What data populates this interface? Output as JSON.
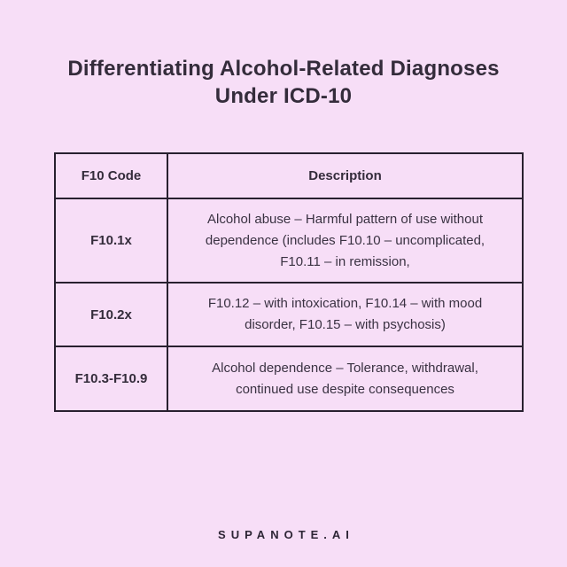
{
  "page": {
    "background_color": "#f7def7",
    "text_color": "#342c3b",
    "border_color": "#28202f"
  },
  "title": {
    "line1": "Differentiating Alcohol-Related Diagnoses",
    "line2": "Under ICD-10"
  },
  "table": {
    "headers": [
      "F10 Code",
      "Description"
    ],
    "rows": [
      {
        "code": "F10.1x",
        "description": "Alcohol abuse – Harmful pattern of use without dependence (includes F10.10 – uncomplicated, F10.11 – in remission,"
      },
      {
        "code": "F10.2x",
        "description": "F10.12 – with intoxication, F10.14 – with mood disorder, F10.15 – with psychosis)"
      },
      {
        "code": "F10.3-F10.9",
        "description": "Alcohol dependence – Tolerance, withdrawal, continued use despite consequences"
      }
    ]
  },
  "footer": {
    "brand": "SUPANOTE.AI"
  }
}
